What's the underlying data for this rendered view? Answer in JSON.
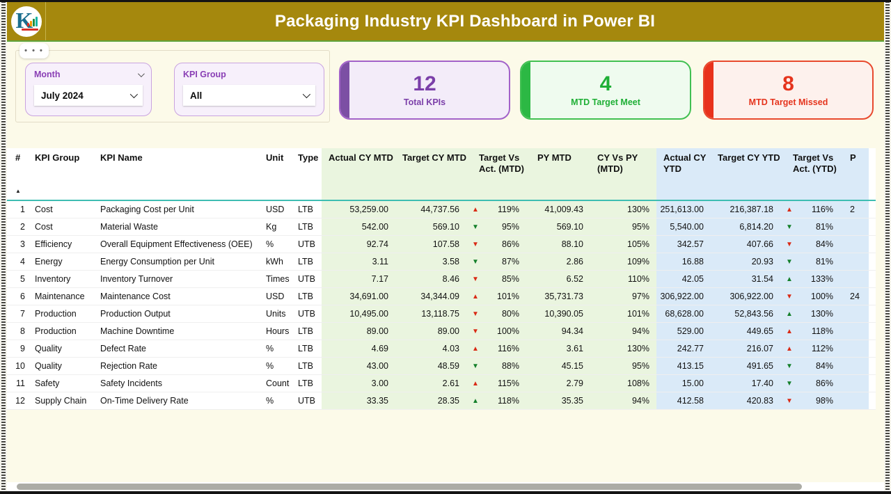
{
  "header": {
    "title": "Packaging Industry KPI Dashboard in Power BI"
  },
  "icons": {
    "more_options": "• • •",
    "sort_ascending": "▲"
  },
  "slicers": {
    "month": {
      "label": "Month",
      "value": "July 2024"
    },
    "kpi_group": {
      "label": "KPI Group",
      "value": "All"
    }
  },
  "cards": [
    {
      "value": "12",
      "label": "Total KPIs",
      "color": "#7B3FA9"
    },
    {
      "value": "4",
      "label": "MTD Target Meet",
      "color": "#1FAF36"
    },
    {
      "value": "8",
      "label": "MTD Target Missed",
      "color": "#E5341D"
    }
  ],
  "colors": {
    "up_down_bad": "#D92B16",
    "up_down_good": "#15802B",
    "accent_gold": "#A5880D"
  },
  "table": {
    "columns": [
      "#",
      "KPI Group",
      "KPI Name",
      "Unit",
      "Type",
      "Actual CY MTD",
      "Target CY MTD",
      "Target Vs Act. (MTD)",
      "PY MTD",
      "CY Vs PY (MTD)",
      "Actual CY YTD",
      "Target CY YTD",
      "Target Vs Act. (YTD)",
      "P"
    ],
    "rows": [
      {
        "n": "1",
        "group": "Cost",
        "name": "Packaging Cost per Unit",
        "unit": "USD",
        "type": "LTB",
        "act_mtd": "53,259.00",
        "tgt_mtd": "44,737.56",
        "tva_mtd": {
          "arrow": "▲",
          "tone": "red",
          "value": "119%"
        },
        "py_mtd": "41,009.43",
        "cy_vs_py": "130%",
        "act_ytd": "251,613.00",
        "tgt_ytd": "216,387.18",
        "tva_ytd": {
          "arrow": "▲",
          "tone": "red",
          "value": "116%"
        },
        "py_ytd": "2"
      },
      {
        "n": "2",
        "group": "Cost",
        "name": "Material Waste",
        "unit": "Kg",
        "type": "LTB",
        "act_mtd": "542.00",
        "tgt_mtd": "569.10",
        "tva_mtd": {
          "arrow": "▼",
          "tone": "green",
          "value": "95%"
        },
        "py_mtd": "569.10",
        "cy_vs_py": "95%",
        "act_ytd": "5,540.00",
        "tgt_ytd": "6,814.20",
        "tva_ytd": {
          "arrow": "▼",
          "tone": "green",
          "value": "81%"
        },
        "py_ytd": ""
      },
      {
        "n": "3",
        "group": "Efficiency",
        "name": "Overall Equipment Effectiveness (OEE)",
        "unit": "%",
        "type": "UTB",
        "act_mtd": "92.74",
        "tgt_mtd": "107.58",
        "tva_mtd": {
          "arrow": "▼",
          "tone": "red",
          "value": "86%"
        },
        "py_mtd": "88.10",
        "cy_vs_py": "105%",
        "act_ytd": "342.57",
        "tgt_ytd": "407.66",
        "tva_ytd": {
          "arrow": "▼",
          "tone": "red",
          "value": "84%"
        },
        "py_ytd": ""
      },
      {
        "n": "4",
        "group": "Energy",
        "name": "Energy Consumption per Unit",
        "unit": "kWh",
        "type": "LTB",
        "act_mtd": "3.11",
        "tgt_mtd": "3.58",
        "tva_mtd": {
          "arrow": "▼",
          "tone": "green",
          "value": "87%"
        },
        "py_mtd": "2.86",
        "cy_vs_py": "109%",
        "act_ytd": "16.88",
        "tgt_ytd": "20.93",
        "tva_ytd": {
          "arrow": "▼",
          "tone": "green",
          "value": "81%"
        },
        "py_ytd": ""
      },
      {
        "n": "5",
        "group": "Inventory",
        "name": "Inventory Turnover",
        "unit": "Times",
        "type": "UTB",
        "act_mtd": "7.17",
        "tgt_mtd": "8.46",
        "tva_mtd": {
          "arrow": "▼",
          "tone": "red",
          "value": "85%"
        },
        "py_mtd": "6.52",
        "cy_vs_py": "110%",
        "act_ytd": "42.05",
        "tgt_ytd": "31.54",
        "tva_ytd": {
          "arrow": "▲",
          "tone": "green",
          "value": "133%"
        },
        "py_ytd": ""
      },
      {
        "n": "6",
        "group": "Maintenance",
        "name": "Maintenance Cost",
        "unit": "USD",
        "type": "LTB",
        "act_mtd": "34,691.00",
        "tgt_mtd": "34,344.09",
        "tva_mtd": {
          "arrow": "▲",
          "tone": "red",
          "value": "101%"
        },
        "py_mtd": "35,731.73",
        "cy_vs_py": "97%",
        "act_ytd": "306,922.00",
        "tgt_ytd": "306,922.00",
        "tva_ytd": {
          "arrow": "▼",
          "tone": "red",
          "value": "100%"
        },
        "py_ytd": "24"
      },
      {
        "n": "7",
        "group": "Production",
        "name": "Production Output",
        "unit": "Units",
        "type": "UTB",
        "act_mtd": "10,495.00",
        "tgt_mtd": "13,118.75",
        "tva_mtd": {
          "arrow": "▼",
          "tone": "red",
          "value": "80%"
        },
        "py_mtd": "10,390.05",
        "cy_vs_py": "101%",
        "act_ytd": "68,628.00",
        "tgt_ytd": "52,843.56",
        "tva_ytd": {
          "arrow": "▲",
          "tone": "green",
          "value": "130%"
        },
        "py_ytd": ""
      },
      {
        "n": "8",
        "group": "Production",
        "name": "Machine Downtime",
        "unit": "Hours",
        "type": "LTB",
        "act_mtd": "89.00",
        "tgt_mtd": "89.00",
        "tva_mtd": {
          "arrow": "▼",
          "tone": "red",
          "value": "100%"
        },
        "py_mtd": "94.34",
        "cy_vs_py": "94%",
        "act_ytd": "529.00",
        "tgt_ytd": "449.65",
        "tva_ytd": {
          "arrow": "▲",
          "tone": "red",
          "value": "118%"
        },
        "py_ytd": ""
      },
      {
        "n": "9",
        "group": "Quality",
        "name": "Defect Rate",
        "unit": "%",
        "type": "LTB",
        "act_mtd": "4.69",
        "tgt_mtd": "4.03",
        "tva_mtd": {
          "arrow": "▲",
          "tone": "red",
          "value": "116%"
        },
        "py_mtd": "3.61",
        "cy_vs_py": "130%",
        "act_ytd": "242.77",
        "tgt_ytd": "216.07",
        "tva_ytd": {
          "arrow": "▲",
          "tone": "red",
          "value": "112%"
        },
        "py_ytd": ""
      },
      {
        "n": "10",
        "group": "Quality",
        "name": "Rejection Rate",
        "unit": "%",
        "type": "LTB",
        "act_mtd": "43.00",
        "tgt_mtd": "48.59",
        "tva_mtd": {
          "arrow": "▼",
          "tone": "green",
          "value": "88%"
        },
        "py_mtd": "45.15",
        "cy_vs_py": "95%",
        "act_ytd": "413.15",
        "tgt_ytd": "491.65",
        "tva_ytd": {
          "arrow": "▼",
          "tone": "green",
          "value": "84%"
        },
        "py_ytd": ""
      },
      {
        "n": "11",
        "group": "Safety",
        "name": "Safety Incidents",
        "unit": "Count",
        "type": "LTB",
        "act_mtd": "3.00",
        "tgt_mtd": "2.61",
        "tva_mtd": {
          "arrow": "▲",
          "tone": "red",
          "value": "115%"
        },
        "py_mtd": "2.79",
        "cy_vs_py": "108%",
        "act_ytd": "15.00",
        "tgt_ytd": "17.40",
        "tva_ytd": {
          "arrow": "▼",
          "tone": "green",
          "value": "86%"
        },
        "py_ytd": ""
      },
      {
        "n": "12",
        "group": "Supply Chain",
        "name": "On-Time Delivery Rate",
        "unit": "%",
        "type": "UTB",
        "act_mtd": "33.35",
        "tgt_mtd": "28.35",
        "tva_mtd": {
          "arrow": "▲",
          "tone": "green",
          "value": "118%"
        },
        "py_mtd": "35.35",
        "cy_vs_py": "94%",
        "act_ytd": "412.58",
        "tgt_ytd": "420.83",
        "tva_ytd": {
          "arrow": "▼",
          "tone": "red",
          "value": "98%"
        },
        "py_ytd": ""
      }
    ]
  }
}
